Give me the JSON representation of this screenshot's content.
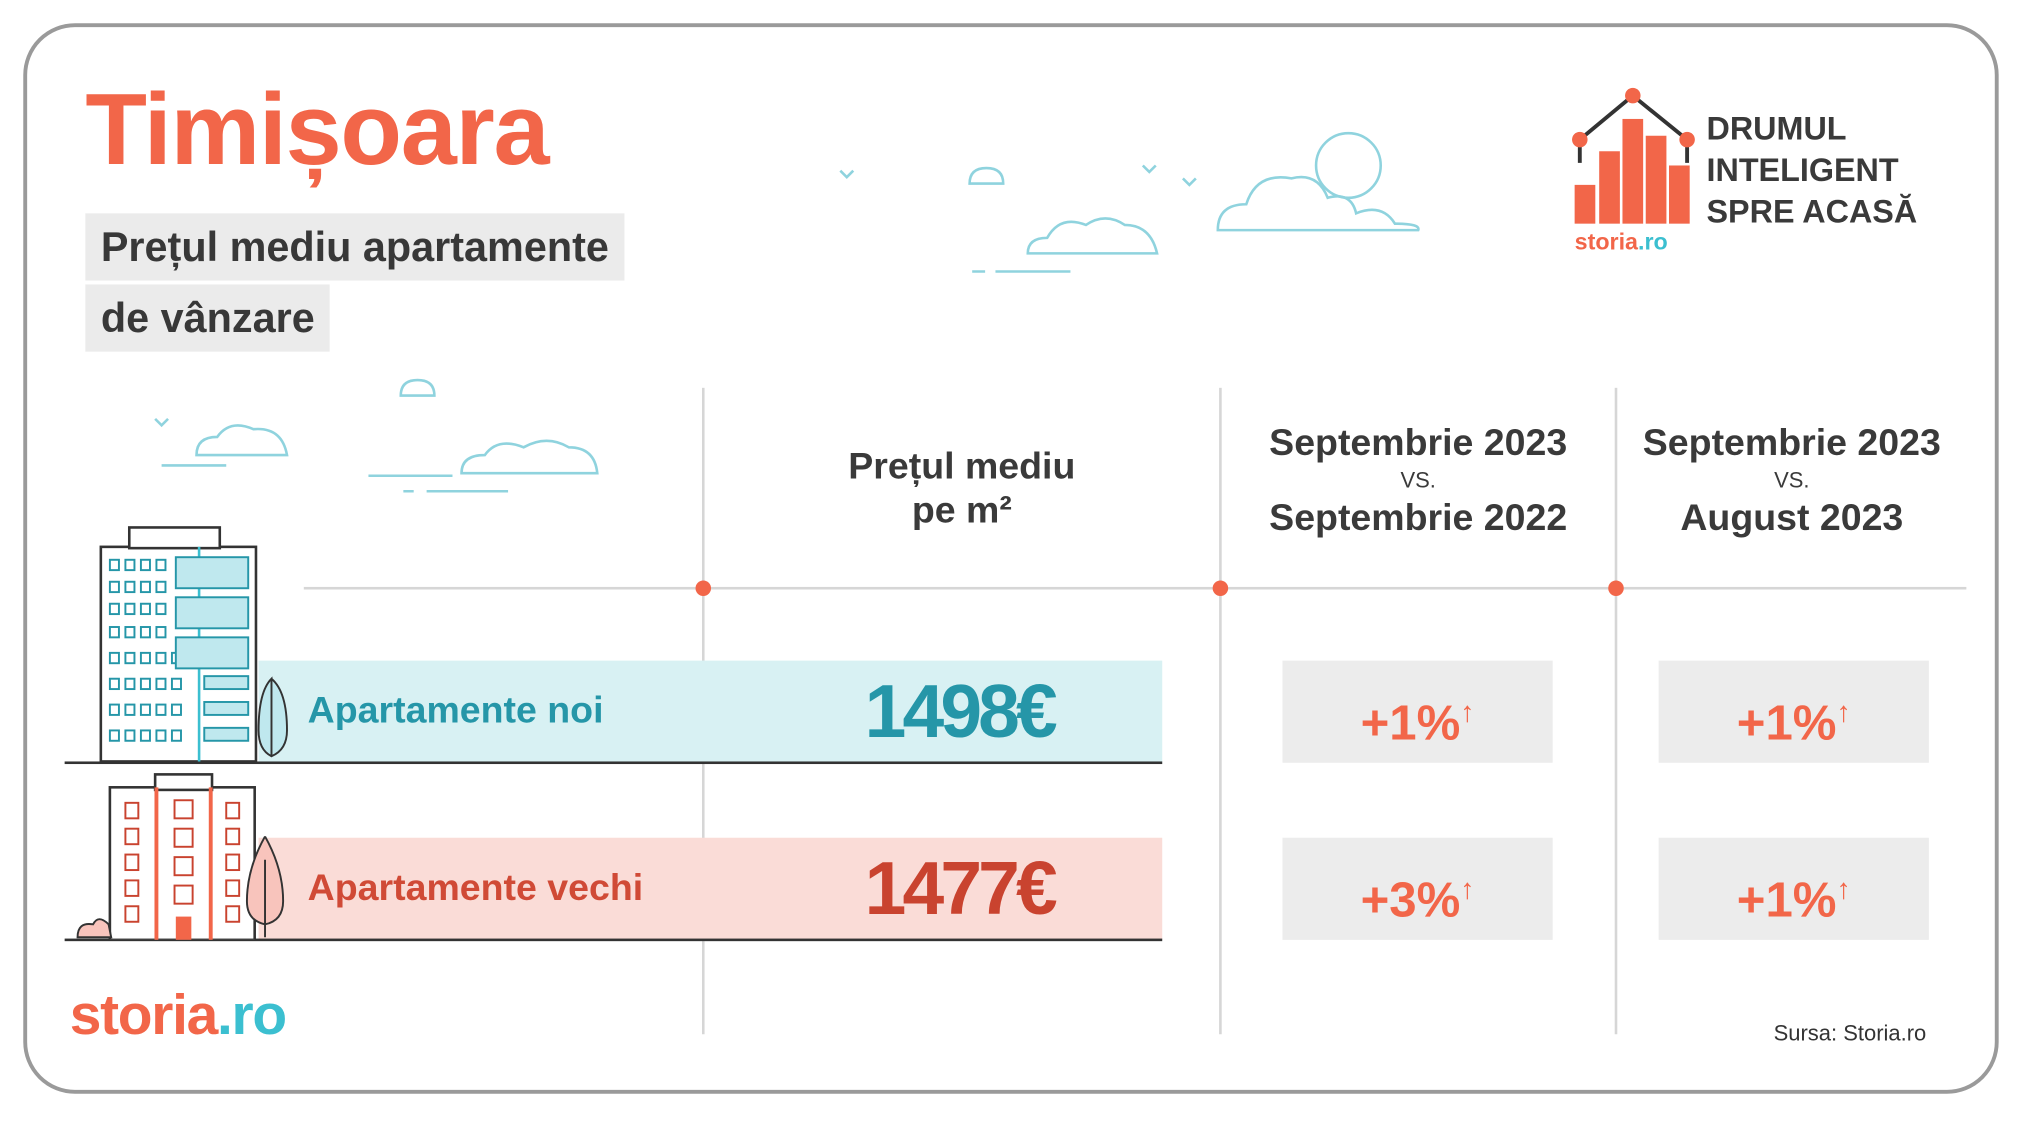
{
  "title": "Timișoara",
  "subtitle": {
    "line1": "Prețul mediu apartamente",
    "line2": "de vânzare"
  },
  "brand": {
    "campaign": [
      "DRUMUL",
      "INTELIGENT",
      "SPRE ACASĂ"
    ],
    "logo_main": "storia",
    "logo_tld": ".ro",
    "colors": {
      "orange": "#f26649",
      "cyan": "#3bbfd0"
    }
  },
  "columns": {
    "price": {
      "line1": "Prețul mediu",
      "line2": "pe m²"
    },
    "yoy": {
      "line1": "Septembrie 2023",
      "vs": "VS.",
      "line2": "Septembrie 2022"
    },
    "mom": {
      "line1": "Septembrie 2023",
      "vs": "VS.",
      "line2": "August 2023"
    }
  },
  "rows": [
    {
      "label": "Apartamente noi",
      "price": "1498€",
      "yoy": "+1%",
      "mom": "+1%",
      "trend": "up",
      "color": "#2596a8"
    },
    {
      "label": "Apartamente vechi",
      "price": "1477€",
      "yoy": "+3%",
      "mom": "+1%",
      "trend": "up",
      "color": "#c9432f"
    }
  ],
  "trend_arrow": "↑",
  "source": "Sursa: Storia.ro"
}
